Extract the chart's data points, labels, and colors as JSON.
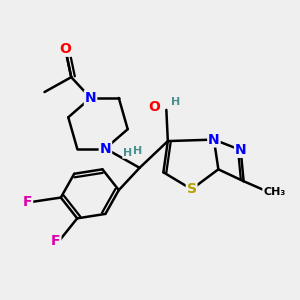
{
  "bg_color": "#efefef",
  "bond_color": "#000000",
  "bond_width": 1.8,
  "colors": {
    "O": "#ff0000",
    "N": "#0000ff",
    "S": "#b8a000",
    "F": "#dd00aa",
    "H": "#4a9090",
    "C": "#000000"
  },
  "fig_size": [
    3.0,
    3.0
  ],
  "dpi": 100
}
